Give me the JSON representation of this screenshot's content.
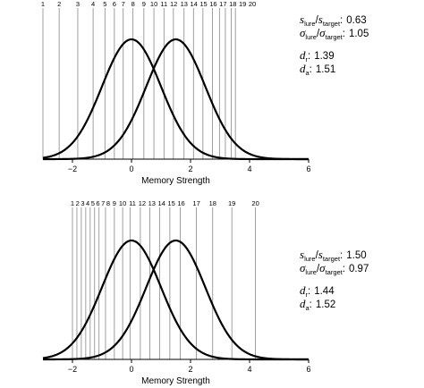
{
  "chart_data": [
    {
      "type": "line",
      "xlabel": "Memory Strength",
      "xlim": [
        -3,
        6
      ],
      "xticks": [
        "−2",
        "0",
        "2",
        "4",
        "6"
      ],
      "xtick_values": [
        -2,
        0,
        2,
        4,
        6
      ],
      "series": [
        {
          "distribution": "normal",
          "mean": 0,
          "sd": 1
        },
        {
          "distribution": "normal",
          "mean": 1.5,
          "sd": 1
        }
      ],
      "criteria_labels": [
        "1",
        "2",
        "3",
        "4",
        "5",
        "6",
        "7",
        "8",
        "9",
        "10",
        "11",
        "12",
        "13",
        "14",
        "15",
        "16",
        "17",
        "18",
        "19",
        "20"
      ],
      "criteria_x": [
        -3.0,
        -2.45,
        -1.82,
        -1.3,
        -0.9,
        -0.58,
        -0.28,
        0.05,
        0.42,
        0.76,
        1.1,
        1.42,
        1.78,
        2.1,
        2.42,
        2.74,
        2.98,
        3.18,
        3.38,
        3.52
      ],
      "annotation": {
        "ratio_s_label": "s",
        "ratio_s_sub1": "lure",
        "ratio_s_sub2": "target",
        "ratio_s_value": "0.63",
        "ratio_sigma_label": "σ",
        "ratio_sigma_sub1": "lure",
        "ratio_sigma_sub2": "target",
        "ratio_sigma_value": "1.05",
        "dr_label": "d",
        "dr_sub": "r",
        "dr_value": "1.39",
        "da_label": "d",
        "da_sub": "a",
        "da_value": "1.51"
      }
    },
    {
      "type": "line",
      "xlabel": "Memory Strength",
      "xlim": [
        -3,
        6
      ],
      "xticks": [
        "−2",
        "0",
        "2",
        "4",
        "6"
      ],
      "xtick_values": [
        -2,
        0,
        2,
        4,
        6
      ],
      "series": [
        {
          "distribution": "normal",
          "mean": 0,
          "sd": 1
        },
        {
          "distribution": "normal",
          "mean": 1.5,
          "sd": 1
        }
      ],
      "criteria_labels": [
        "1",
        "2",
        "3",
        "4",
        "5",
        "6",
        "7",
        "8",
        "9",
        "10",
        "11",
        "12",
        "13",
        "14",
        "15",
        "16",
        "17",
        "18",
        "19",
        "20"
      ],
      "criteria_x": [
        -2.0,
        -1.85,
        -1.7,
        -1.55,
        -1.4,
        -1.25,
        -1.1,
        -0.88,
        -0.58,
        -0.3,
        -0.05,
        0.3,
        0.62,
        0.95,
        1.3,
        1.65,
        2.2,
        2.75,
        3.4,
        4.2
      ],
      "annotation": {
        "ratio_s_label": "s",
        "ratio_s_sub1": "lure",
        "ratio_s_sub2": "target",
        "ratio_s_value": "1.50",
        "ratio_sigma_label": "σ",
        "ratio_sigma_sub1": "lure",
        "ratio_sigma_sub2": "target",
        "ratio_sigma_value": "0.97",
        "dr_label": "d",
        "dr_sub": "r",
        "dr_value": "1.44",
        "da_label": "d",
        "da_sub": "a",
        "da_value": "1.52"
      }
    }
  ]
}
